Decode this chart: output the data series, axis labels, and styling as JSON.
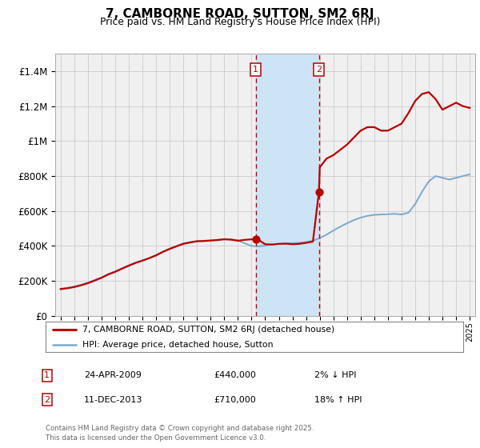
{
  "title": "7, CAMBORNE ROAD, SUTTON, SM2 6RJ",
  "subtitle": "Price paid vs. HM Land Registry's House Price Index (HPI)",
  "legend_line1": "7, CAMBORNE ROAD, SUTTON, SM2 6RJ (detached house)",
  "legend_line2": "HPI: Average price, detached house, Sutton",
  "footnote": "Contains HM Land Registry data © Crown copyright and database right 2025.\nThis data is licensed under the Open Government Licence v3.0.",
  "sale1_label": "1",
  "sale1_date": "24-APR-2009",
  "sale1_price": "£440,000",
  "sale1_hpi": "2% ↓ HPI",
  "sale1_year": 2009.31,
  "sale1_value": 440000,
  "sale2_label": "2",
  "sale2_date": "11-DEC-2013",
  "sale2_price": "£710,000",
  "sale2_hpi": "18% ↑ HPI",
  "sale2_year": 2013.94,
  "sale2_value": 710000,
  "red_line_color": "#bb0000",
  "blue_line_color": "#7aaacc",
  "shade_color": "#cce4f5",
  "background_color": "#f0f0f0",
  "grid_color": "#cccccc",
  "ylim": [
    0,
    1500000
  ],
  "yticks": [
    0,
    200000,
    400000,
    600000,
    800000,
    1000000,
    1200000,
    1400000
  ],
  "ytick_labels": [
    "£0",
    "£200K",
    "£400K",
    "£600K",
    "£800K",
    "£1M",
    "£1.2M",
    "£1.4M"
  ],
  "hpi_x": [
    1995.0,
    1995.5,
    1996.0,
    1996.5,
    1997.0,
    1997.5,
    1998.0,
    1998.5,
    1999.0,
    1999.5,
    2000.0,
    2000.5,
    2001.0,
    2001.5,
    2002.0,
    2002.5,
    2003.0,
    2003.5,
    2004.0,
    2004.5,
    2005.0,
    2005.5,
    2006.0,
    2006.5,
    2007.0,
    2007.5,
    2008.0,
    2008.5,
    2009.0,
    2009.5,
    2010.0,
    2010.5,
    2011.0,
    2011.5,
    2012.0,
    2012.5,
    2013.0,
    2013.5,
    2014.0,
    2014.5,
    2015.0,
    2015.5,
    2016.0,
    2016.5,
    2017.0,
    2017.5,
    2018.0,
    2018.5,
    2019.0,
    2019.5,
    2020.0,
    2020.5,
    2021.0,
    2021.5,
    2022.0,
    2022.5,
    2023.0,
    2023.5,
    2024.0,
    2024.5,
    2025.0
  ],
  "hpi_y": [
    155000,
    160000,
    168000,
    178000,
    190000,
    205000,
    220000,
    240000,
    255000,
    272000,
    290000,
    305000,
    318000,
    332000,
    348000,
    368000,
    385000,
    400000,
    415000,
    422000,
    428000,
    430000,
    432000,
    435000,
    440000,
    438000,
    432000,
    415000,
    400000,
    398000,
    402000,
    408000,
    412000,
    415000,
    416000,
    418000,
    422000,
    430000,
    445000,
    465000,
    488000,
    510000,
    530000,
    548000,
    562000,
    572000,
    578000,
    580000,
    582000,
    584000,
    580000,
    590000,
    640000,
    710000,
    770000,
    800000,
    790000,
    780000,
    790000,
    800000,
    810000
  ],
  "price_x": [
    1995.0,
    1995.5,
    1996.0,
    1996.5,
    1997.0,
    1997.5,
    1998.0,
    1998.5,
    1999.0,
    1999.5,
    2000.0,
    2000.5,
    2001.0,
    2001.5,
    2002.0,
    2002.5,
    2003.0,
    2003.5,
    2004.0,
    2004.5,
    2005.0,
    2005.5,
    2006.0,
    2006.5,
    2007.0,
    2007.5,
    2008.0,
    2008.5,
    2009.0,
    2009.31,
    2009.5,
    2010.0,
    2010.5,
    2011.0,
    2011.5,
    2012.0,
    2012.5,
    2013.0,
    2013.5,
    2013.94,
    2014.0,
    2014.5,
    2015.0,
    2015.5,
    2016.0,
    2016.5,
    2017.0,
    2017.5,
    2018.0,
    2018.5,
    2019.0,
    2019.5,
    2020.0,
    2020.5,
    2021.0,
    2021.5,
    2022.0,
    2022.5,
    2023.0,
    2023.5,
    2024.0,
    2024.5,
    2025.0
  ],
  "price_y": [
    153000,
    158000,
    165000,
    175000,
    187000,
    202000,
    218000,
    237000,
    252000,
    270000,
    287000,
    303000,
    316000,
    330000,
    346000,
    366000,
    383000,
    398000,
    412000,
    420000,
    427000,
    428000,
    431000,
    434000,
    438000,
    436000,
    430000,
    435000,
    438000,
    440000,
    435000,
    410000,
    408000,
    412000,
    413000,
    410000,
    412000,
    418000,
    425000,
    710000,
    850000,
    900000,
    920000,
    950000,
    980000,
    1020000,
    1060000,
    1080000,
    1080000,
    1060000,
    1060000,
    1080000,
    1100000,
    1160000,
    1230000,
    1270000,
    1280000,
    1240000,
    1180000,
    1200000,
    1220000,
    1200000,
    1190000
  ]
}
